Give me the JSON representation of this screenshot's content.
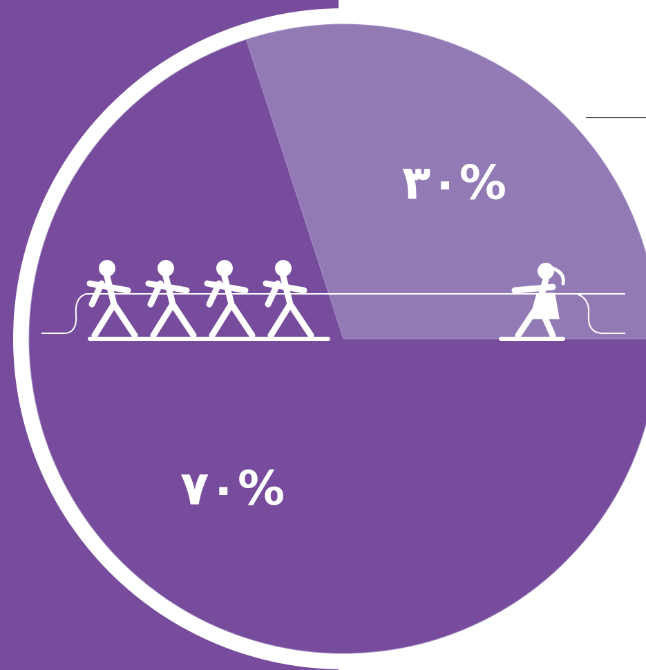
{
  "chart_data": {
    "type": "pie",
    "categories": [
      null,
      null
    ],
    "values": [
      30,
      70
    ],
    "value_labels": [
      "۳۰%",
      "۷۰%"
    ],
    "colors": [
      "#927ab5",
      "#774c9c"
    ]
  }
}
